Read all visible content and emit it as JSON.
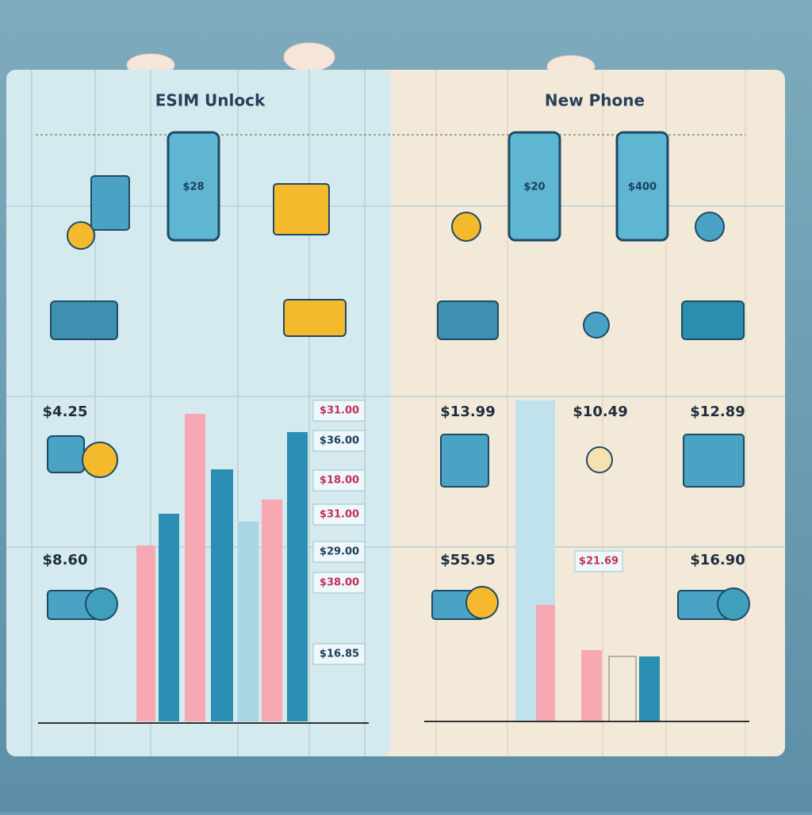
{
  "left_panel": {
    "title": "ESIM Unlock",
    "phone_price": "$28",
    "prices": [
      "$4.25",
      "$8.60"
    ],
    "tags": [
      "$31.00",
      "$36.00",
      "$18.00",
      "$31.00",
      "$29.00",
      "$38.00",
      "$16.85"
    ]
  },
  "right_panel": {
    "title": "New Phone",
    "phone_prices": [
      "$20",
      "$400"
    ],
    "prices": [
      "$13.99",
      "$10.49",
      "$12.89",
      "$55.95",
      "$16.90"
    ],
    "tag": "$21.69"
  }
}
